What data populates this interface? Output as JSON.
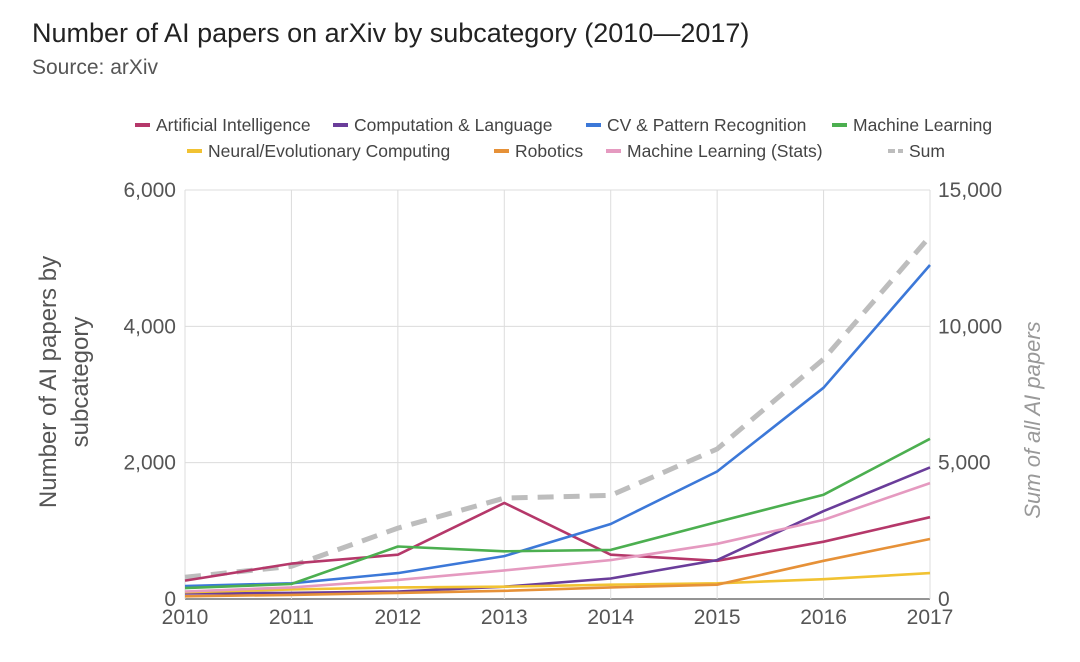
{
  "chart_data": {
    "type": "line",
    "title": "Number of AI papers on arXiv by subcategory (2010—2017)",
    "subtitle": "Source: arXiv",
    "x": [
      2010,
      2011,
      2012,
      2013,
      2014,
      2015,
      2016,
      2017
    ],
    "ylabel": "Number of AI papers by subcategory",
    "y2label": "Sum of all AI papers",
    "ylim": [
      0,
      6000
    ],
    "y2lim": [
      0,
      15000
    ],
    "yticks": [
      "0",
      "2,000",
      "4,000",
      "6,000"
    ],
    "y2ticks": [
      "0",
      "5,000",
      "10,000",
      "15,000"
    ],
    "legend_position": "top",
    "grid": true,
    "series": [
      {
        "name": "Artificial Intelligence",
        "color": "#b5386a",
        "axis": "left",
        "values": [
          270,
          520,
          650,
          1410,
          650,
          560,
          840,
          1200
        ]
      },
      {
        "name": "Computation & Language",
        "color": "#6a3d9a",
        "axis": "left",
        "values": [
          80,
          90,
          110,
          180,
          300,
          570,
          1290,
          1930
        ]
      },
      {
        "name": "CV & Pattern Recognition",
        "color": "#3c78d8",
        "axis": "left",
        "values": [
          190,
          230,
          380,
          630,
          1100,
          1870,
          3100,
          4900
        ]
      },
      {
        "name": "Machine Learning",
        "color": "#4caf50",
        "axis": "left",
        "values": [
          160,
          220,
          770,
          700,
          720,
          1130,
          1530,
          2350
        ]
      },
      {
        "name": "Neural/Evolutionary Computing",
        "color": "#f1c232",
        "axis": "left",
        "values": [
          100,
          140,
          170,
          180,
          210,
          230,
          290,
          380
        ]
      },
      {
        "name": "Robotics",
        "color": "#e69138",
        "axis": "left",
        "values": [
          40,
          60,
          90,
          120,
          170,
          210,
          560,
          880
        ]
      },
      {
        "name": "Machine Learning (Stats)",
        "color": "#e59ac0",
        "axis": "left",
        "values": [
          110,
          170,
          280,
          420,
          570,
          810,
          1160,
          1700
        ]
      },
      {
        "name": "Sum",
        "color": "#bdbdbd",
        "axis": "right",
        "dashed": true,
        "values": [
          800,
          1200,
          2600,
          3700,
          3800,
          5500,
          8800,
          13300
        ]
      }
    ]
  }
}
